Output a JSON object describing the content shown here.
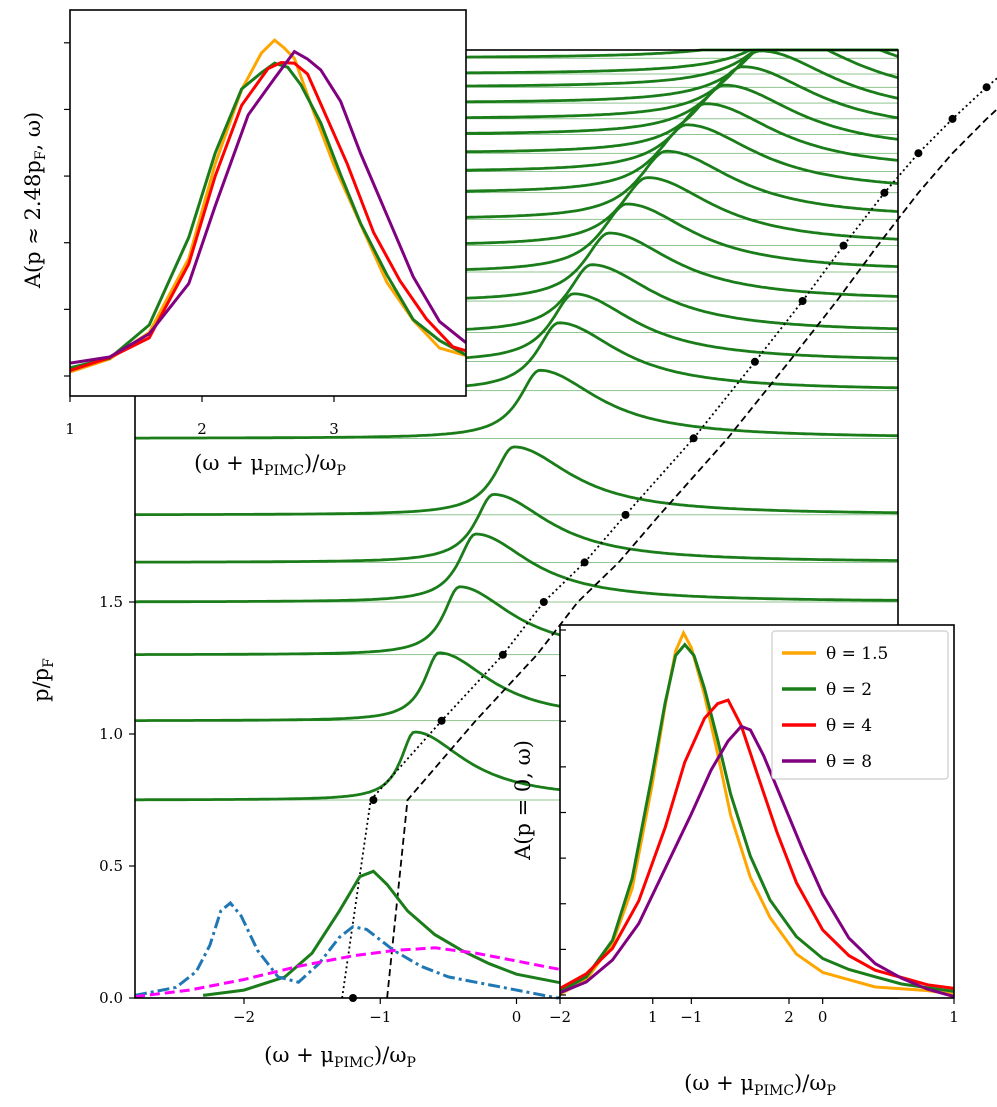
{
  "colors": {
    "green": "#1a7d1a",
    "orange": "#ffa500",
    "red": "#ff0000",
    "purple": "#800080",
    "blue": "#1f77b4",
    "magenta": "#ff00ff",
    "gridline": "#228b22",
    "black": "#000000"
  },
  "chart_data": [
    {
      "id": "main",
      "type": "line",
      "xlabel": "(ω + μ_PIMC)/ω_P",
      "ylabel": "p/p_F",
      "xlim": [
        -2.8,
        2.8
      ],
      "ylim": [
        0,
        3.3
      ],
      "xticks": [
        -2,
        -1,
        0,
        1,
        2
      ],
      "xtick_labels": [
        "−2",
        "−1",
        "0",
        "1",
        "2"
      ],
      "yticks": [
        0,
        0.5,
        1.0,
        1.5
      ],
      "ytick_labels": [
        "0.0",
        "0.5",
        "1.0",
        "1.5"
      ],
      "spectra_baselines": [
        0.75,
        1.05,
        1.3,
        1.5,
        1.65,
        1.83,
        2.12,
        2.3,
        2.41,
        2.52,
        2.64,
        2.75,
        2.85,
        2.95,
        3.05,
        3.13,
        3.2,
        3.27,
        3.33,
        3.39,
        3.45,
        3.5,
        3.56,
        3.61,
        3.66,
        3.72,
        3.78,
        3.86,
        3.95,
        4.05,
        4.17,
        4.32
      ],
      "spectra_peak_omega": [
        -0.75,
        -0.57,
        -0.42,
        -0.3,
        -0.17,
        -0.02,
        0.17,
        0.31,
        0.42,
        0.55,
        0.68,
        0.81,
        0.96,
        1.1,
        1.25,
        1.39,
        1.53,
        1.66,
        1.79,
        1.92,
        2.04,
        2.16,
        2.28,
        2.4,
        2.52,
        2.64,
        2.76,
        2.9,
        3.05,
        3.2,
        3.38,
        3.6
      ],
      "dispersion_points": {
        "name": "PIMC peak positions",
        "p": [
          0.0,
          0.75,
          1.05,
          1.3,
          1.5,
          1.65,
          1.83,
          2.12,
          2.41,
          2.64,
          2.85,
          3.05,
          3.2,
          3.33,
          3.45,
          3.56,
          3.66,
          3.78,
          3.95,
          4.05,
          4.17,
          4.32
        ],
        "omega": [
          -1.2,
          -1.05,
          -0.55,
          -0.1,
          0.2,
          0.5,
          0.8,
          1.3,
          1.75,
          2.1,
          2.4,
          2.7,
          2.95,
          3.2,
          3.45,
          3.7,
          3.95,
          4.2,
          4.45,
          4.75,
          5.05,
          5.4
        ]
      },
      "bottom_curves": [
        {
          "name": "green spectrum p=0",
          "omega": [
            -2.3,
            -2.0,
            -1.7,
            -1.5,
            -1.3,
            -1.15,
            -1.05,
            -0.95,
            -0.8,
            -0.6,
            -0.4,
            -0.2,
            0.0,
            0.3,
            0.6,
            1.0,
            1.5,
            2.0
          ],
          "value": [
            0.01,
            0.03,
            0.08,
            0.17,
            0.33,
            0.46,
            0.48,
            0.43,
            0.33,
            0.24,
            0.18,
            0.13,
            0.09,
            0.06,
            0.04,
            0.025,
            0.015,
            0.01
          ]
        },
        {
          "name": "blue dash-dot",
          "omega": [
            -2.8,
            -2.5,
            -2.35,
            -2.25,
            -2.17,
            -2.1,
            -2.02,
            -1.9,
            -1.75,
            -1.6,
            -1.45,
            -1.3,
            -1.2,
            -1.1,
            -1.0,
            -0.9,
            -0.7,
            -0.5,
            -0.3,
            -0.1,
            0.1,
            0.3,
            0.5,
            0.8,
            1.0,
            1.2,
            1.5,
            1.8,
            2.1
          ],
          "value": [
            0.01,
            0.04,
            0.1,
            0.2,
            0.33,
            0.36,
            0.31,
            0.18,
            0.08,
            0.06,
            0.13,
            0.23,
            0.27,
            0.26,
            0.22,
            0.18,
            0.12,
            0.08,
            0.06,
            0.04,
            0.02,
            0.0,
            0.02,
            0.06,
            0.07,
            0.06,
            0.04,
            0.02,
            0.01
          ]
        },
        {
          "name": "magenta dashed",
          "omega": [
            -2.8,
            -2.4,
            -2.0,
            -1.6,
            -1.2,
            -0.9,
            -0.6,
            -0.3,
            0.0,
            0.4,
            0.8,
            1.2,
            1.6,
            2.0,
            2.8
          ],
          "value": [
            0.005,
            0.03,
            0.07,
            0.12,
            0.16,
            0.18,
            0.19,
            0.17,
            0.14,
            0.1,
            0.07,
            0.05,
            0.035,
            0.025,
            0.01
          ]
        }
      ]
    },
    {
      "id": "inset_top",
      "type": "line",
      "xlabel": "(ω + μ_PIMC)/ω_P",
      "ylabel": "A(p ≈ 2.48p_F, ω)",
      "xlim": [
        1,
        4.0
      ],
      "xticks": [
        1,
        2,
        3
      ],
      "xtick_labels": [
        "1",
        "2",
        "3"
      ],
      "series": [
        {
          "name": "θ = 1.5",
          "color": "#ffa500",
          "omega": [
            1.0,
            1.3,
            1.6,
            1.9,
            2.1,
            2.3,
            2.45,
            2.55,
            2.62,
            2.7,
            2.85,
            3.0,
            3.2,
            3.4,
            3.6,
            3.8,
            4.0
          ],
          "value": [
            0.02,
            0.05,
            0.12,
            0.35,
            0.62,
            0.85,
            0.95,
            0.98,
            0.97,
            0.93,
            0.78,
            0.62,
            0.44,
            0.28,
            0.16,
            0.09,
            0.06
          ]
        },
        {
          "name": "θ = 2",
          "color": "#1a7d1a",
          "omega": [
            1.0,
            1.3,
            1.6,
            1.9,
            2.1,
            2.3,
            2.45,
            2.55,
            2.65,
            2.75,
            2.9,
            3.05,
            3.2,
            3.4,
            3.6,
            3.8,
            4.0
          ],
          "value": [
            0.02,
            0.06,
            0.15,
            0.4,
            0.66,
            0.84,
            0.9,
            0.92,
            0.9,
            0.86,
            0.74,
            0.6,
            0.45,
            0.29,
            0.17,
            0.1,
            0.07
          ]
        },
        {
          "name": "θ = 4",
          "color": "#ff0000",
          "omega": [
            1.0,
            1.3,
            1.6,
            1.9,
            2.1,
            2.3,
            2.5,
            2.6,
            2.7,
            2.8,
            2.95,
            3.1,
            3.3,
            3.5,
            3.7,
            3.9,
            4.0
          ],
          "value": [
            0.02,
            0.05,
            0.12,
            0.33,
            0.58,
            0.8,
            0.9,
            0.93,
            0.92,
            0.88,
            0.76,
            0.62,
            0.43,
            0.28,
            0.16,
            0.09,
            0.07
          ]
        },
        {
          "name": "θ = 8",
          "color": "#800080",
          "omega": [
            1.0,
            1.3,
            1.6,
            1.9,
            2.1,
            2.35,
            2.55,
            2.7,
            2.8,
            2.9,
            3.05,
            3.2,
            3.4,
            3.6,
            3.8,
            4.0
          ],
          "value": [
            0.03,
            0.06,
            0.12,
            0.28,
            0.5,
            0.76,
            0.88,
            0.95,
            0.94,
            0.9,
            0.8,
            0.66,
            0.47,
            0.3,
            0.16,
            0.09
          ]
        }
      ]
    },
    {
      "id": "inset_bottom",
      "type": "line",
      "xlabel": "(ω + μ_PIMC)/ω_P",
      "ylabel": "A(p = 0, ω)",
      "xlim": [
        -2,
        1
      ],
      "xticks": [
        -2,
        -1,
        0,
        1
      ],
      "xtick_labels": [
        "−2",
        "−1",
        "0",
        "1"
      ],
      "legend_position": "top-right",
      "series": [
        {
          "name": "θ = 1.5",
          "color": "#ffa500",
          "omega": [
            -2.0,
            -1.8,
            -1.6,
            -1.45,
            -1.3,
            -1.2,
            -1.12,
            -1.06,
            -1.0,
            -0.9,
            -0.8,
            -0.7,
            -0.55,
            -0.4,
            -0.2,
            0.0,
            0.2,
            0.4,
            0.6,
            0.8,
            1.0
          ],
          "value": [
            0.01,
            0.05,
            0.15,
            0.3,
            0.58,
            0.8,
            0.95,
            1.0,
            0.96,
            0.83,
            0.67,
            0.5,
            0.33,
            0.22,
            0.12,
            0.07,
            0.05,
            0.03,
            0.025,
            0.02,
            0.01
          ]
        },
        {
          "name": "θ = 2",
          "color": "#1a7d1a",
          "omega": [
            -2.0,
            -1.8,
            -1.6,
            -1.45,
            -1.3,
            -1.2,
            -1.12,
            -1.05,
            -0.98,
            -0.9,
            -0.8,
            -0.7,
            -0.55,
            -0.4,
            -0.2,
            0.0,
            0.2,
            0.4,
            0.6,
            0.8,
            1.0
          ],
          "value": [
            0.01,
            0.05,
            0.15,
            0.32,
            0.6,
            0.8,
            0.93,
            0.96,
            0.93,
            0.84,
            0.7,
            0.55,
            0.38,
            0.26,
            0.16,
            0.1,
            0.07,
            0.05,
            0.03,
            0.02,
            0.01
          ]
        },
        {
          "name": "θ = 4",
          "color": "#ff0000",
          "omega": [
            -2.0,
            -1.8,
            -1.6,
            -1.4,
            -1.2,
            -1.05,
            -0.9,
            -0.8,
            -0.72,
            -0.62,
            -0.5,
            -0.35,
            -0.2,
            0.0,
            0.2,
            0.4,
            0.6,
            0.8,
            1.0
          ],
          "value": [
            0.01,
            0.05,
            0.12,
            0.25,
            0.45,
            0.63,
            0.75,
            0.79,
            0.8,
            0.73,
            0.6,
            0.44,
            0.3,
            0.17,
            0.1,
            0.06,
            0.04,
            0.02,
            0.01
          ]
        },
        {
          "name": "θ = 8",
          "color": "#800080",
          "omega": [
            -2.0,
            -1.8,
            -1.6,
            -1.4,
            -1.2,
            -1.0,
            -0.85,
            -0.72,
            -0.62,
            -0.55,
            -0.45,
            -0.3,
            -0.15,
            0.0,
            0.2,
            0.4,
            0.6,
            0.8,
            1.0
          ],
          "value": [
            0.01,
            0.04,
            0.1,
            0.2,
            0.35,
            0.5,
            0.62,
            0.7,
            0.74,
            0.73,
            0.66,
            0.53,
            0.4,
            0.28,
            0.16,
            0.09,
            0.05,
            0.02,
            0.0
          ]
        }
      ]
    }
  ],
  "labels": {
    "main_xlabel_base": "(ω + μ",
    "main_xlabel_sub": "PIMC",
    "main_xlabel_tail": ")/ω",
    "main_xlabel_sub2": "P",
    "main_ylabel_base": "p/p",
    "main_ylabel_sub": "F",
    "top_ylabel": "A(p ≈ 2.48p",
    "top_ylabel_sub": "F",
    "top_ylabel_tail": ", ω)",
    "bottom_ylabel": "A(p = 0, ω)"
  },
  "legend": [
    {
      "label": "θ = 1.5",
      "color": "#ffa500"
    },
    {
      "label": "θ = 2",
      "color": "#1a7d1a"
    },
    {
      "label": "θ = 4",
      "color": "#ff0000"
    },
    {
      "label": "θ = 8",
      "color": "#800080"
    }
  ]
}
